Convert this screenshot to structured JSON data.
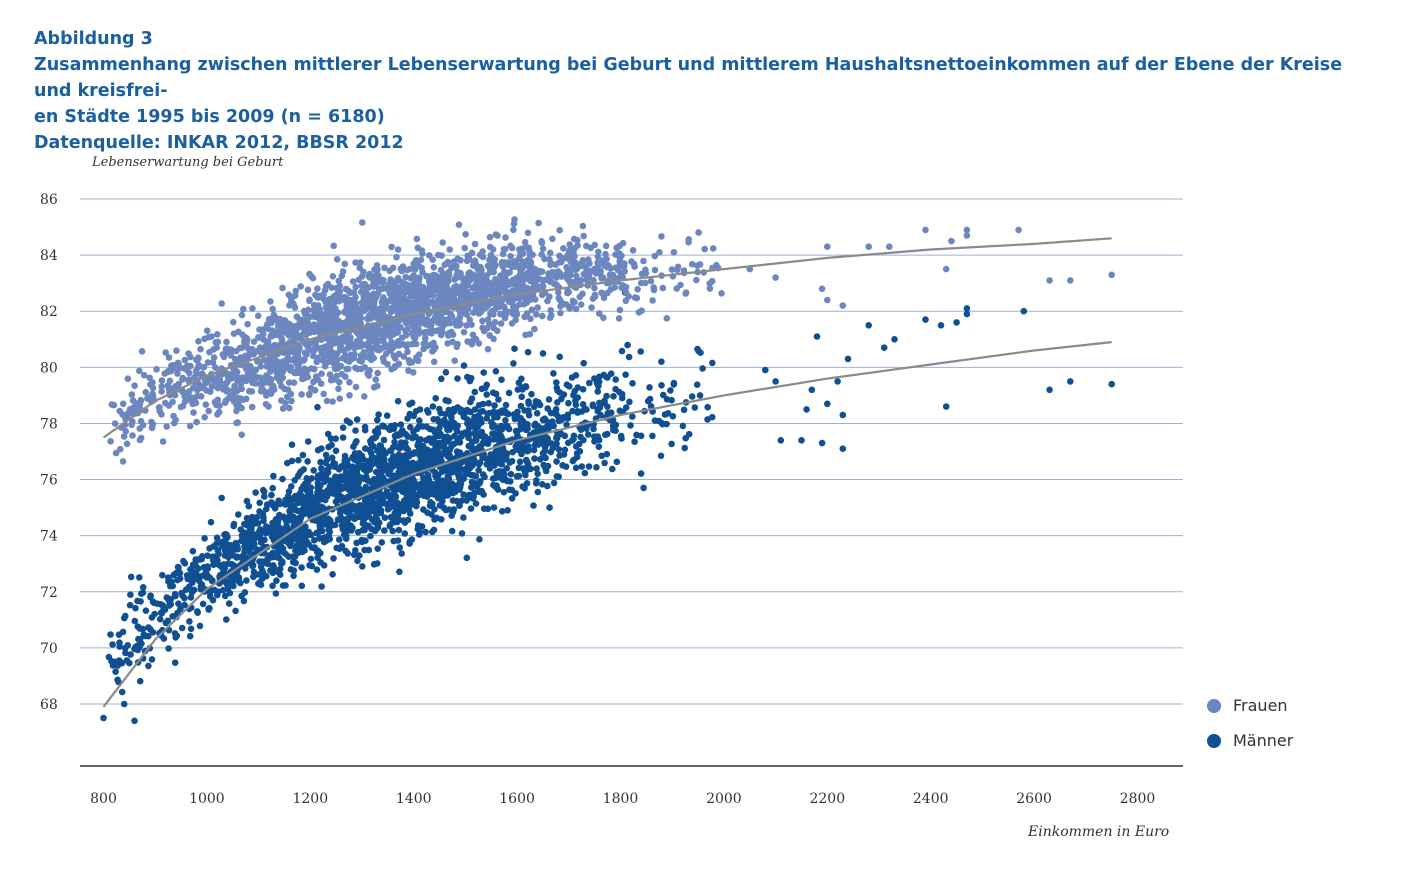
{
  "title": {
    "line1": "Abbildung 3",
    "line2": "Zusammenhang zwischen mittlerer Lebenserwartung bei Geburt und mittlerem Haushaltsnettoeinkommen auf der Ebene der Kreise und kreisfrei-",
    "line3": "en Städte 1995 bis 2009 (n = 6180)",
    "line4": "Datenquelle: INKAR 2012, BBSR 2012"
  },
  "chart_data": {
    "type": "scatter",
    "ylabel": "Lebenserwartung bei Geburt",
    "xlabel": "Einkommen in Euro",
    "xlim": [
      760,
      2900
    ],
    "ylim": [
      66,
      86
    ],
    "xticks": [
      800,
      1000,
      1200,
      1400,
      1600,
      1800,
      2000,
      2200,
      2400,
      2600,
      2800
    ],
    "yticks": [
      68,
      70,
      72,
      74,
      76,
      78,
      80,
      82,
      84,
      86
    ],
    "grid": true,
    "legend_position": "right",
    "series": [
      {
        "name": "Frauen",
        "color": "#6c86bf",
        "trend": [
          [
            800,
            77.5
          ],
          [
            900,
            78.8
          ],
          [
            1000,
            79.7
          ],
          [
            1200,
            81.0
          ],
          [
            1400,
            81.9
          ],
          [
            1600,
            82.6
          ],
          [
            1800,
            83.1
          ],
          [
            2000,
            83.5
          ],
          [
            2200,
            83.9
          ],
          [
            2400,
            84.2
          ],
          [
            2600,
            84.4
          ],
          [
            2750,
            84.6
          ]
        ],
        "outliers": [
          [
            2050,
            83.5
          ],
          [
            2100,
            83.2
          ],
          [
            2200,
            84.3
          ],
          [
            2280,
            84.3
          ],
          [
            2320,
            84.3
          ],
          [
            2390,
            84.9
          ],
          [
            2430,
            83.5
          ],
          [
            2440,
            84.5
          ],
          [
            2470,
            84.9
          ],
          [
            2470,
            84.7
          ],
          [
            2570,
            84.9
          ],
          [
            2630,
            83.1
          ],
          [
            2670,
            83.1
          ],
          [
            2750,
            83.3
          ],
          [
            2200,
            82.4
          ],
          [
            2230,
            82.2
          ],
          [
            2190,
            82.8
          ]
        ],
        "cloud": [
          [
            820,
            78.0,
            0.6
          ],
          [
            900,
            78.8,
            0.7
          ],
          [
            1000,
            79.6,
            0.9
          ],
          [
            1100,
            80.3,
            1.0
          ],
          [
            1200,
            81.0,
            1.1
          ],
          [
            1300,
            81.6,
            1.1
          ],
          [
            1400,
            82.1,
            1.0
          ],
          [
            1500,
            82.6,
            1.0
          ],
          [
            1600,
            83.0,
            0.9
          ],
          [
            1700,
            83.2,
            0.8
          ],
          [
            1800,
            83.4,
            0.8
          ],
          [
            1900,
            83.5,
            0.8
          ],
          [
            2000,
            83.5,
            0.7
          ]
        ]
      },
      {
        "name": "Männer",
        "color": "#0f4f92",
        "trend": [
          [
            800,
            67.9
          ],
          [
            900,
            70.3
          ],
          [
            1000,
            72.1
          ],
          [
            1200,
            74.6
          ],
          [
            1400,
            76.2
          ],
          [
            1600,
            77.4
          ],
          [
            1800,
            78.3
          ],
          [
            2000,
            79.0
          ],
          [
            2200,
            79.6
          ],
          [
            2400,
            80.1
          ],
          [
            2600,
            80.6
          ],
          [
            2750,
            80.9
          ]
        ],
        "outliers": [
          [
            800,
            67.5
          ],
          [
            840,
            68.0
          ],
          [
            860,
            67.4
          ],
          [
            2110,
            77.4
          ],
          [
            2150,
            77.4
          ],
          [
            2190,
            77.3
          ],
          [
            2230,
            77.1
          ],
          [
            2200,
            78.7
          ],
          [
            2230,
            78.3
          ],
          [
            2160,
            78.5
          ],
          [
            2170,
            79.2
          ],
          [
            2220,
            79.5
          ],
          [
            2240,
            80.3
          ],
          [
            2180,
            81.1
          ],
          [
            2280,
            81.5
          ],
          [
            2310,
            80.7
          ],
          [
            2330,
            81.0
          ],
          [
            2390,
            81.7
          ],
          [
            2420,
            81.5
          ],
          [
            2450,
            81.6
          ],
          [
            2470,
            81.9
          ],
          [
            2470,
            82.1
          ],
          [
            2580,
            82.0
          ],
          [
            2430,
            78.6
          ],
          [
            2630,
            79.2
          ],
          [
            2670,
            79.5
          ],
          [
            2750,
            79.4
          ],
          [
            2080,
            79.9
          ],
          [
            2100,
            79.5
          ]
        ],
        "cloud": [
          [
            820,
            69.5,
            1.0
          ],
          [
            900,
            71.0,
            1.0
          ],
          [
            1000,
            72.5,
            0.9
          ],
          [
            1100,
            73.8,
            1.0
          ],
          [
            1200,
            74.9,
            1.1
          ],
          [
            1300,
            75.6,
            1.2
          ],
          [
            1400,
            76.2,
            1.3
          ],
          [
            1500,
            76.8,
            1.4
          ],
          [
            1600,
            77.4,
            1.3
          ],
          [
            1700,
            77.9,
            1.2
          ],
          [
            1800,
            78.3,
            1.2
          ],
          [
            1900,
            78.6,
            1.1
          ],
          [
            2000,
            78.9,
            1.0
          ]
        ]
      }
    ]
  }
}
